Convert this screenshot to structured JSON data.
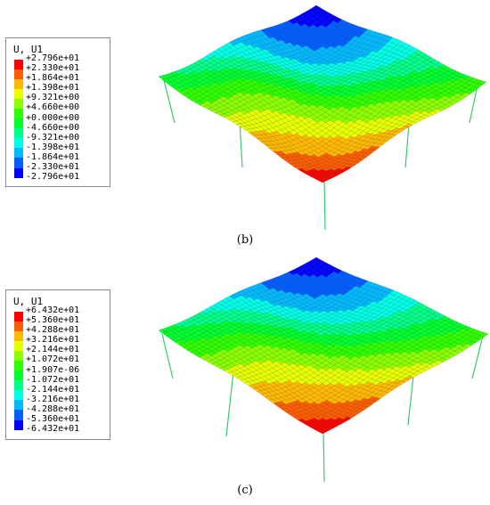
{
  "colors": {
    "contour_scale": [
      "#0000ff",
      "#005dff",
      "#00b9ff",
      "#00ffe8",
      "#00ff8b",
      "#00ff2e",
      "#2eff00",
      "#8bff00",
      "#e8ff00",
      "#ffb900",
      "#ff5d00",
      "#ff0000"
    ]
  },
  "panels": [
    {
      "label": "(b)",
      "legend": {
        "title": "U, U1",
        "values": [
          "+2.796e+01",
          "+2.330e+01",
          "+1.864e+01",
          "+1.398e+01",
          "+9.321e+00",
          "+4.660e+00",
          "+0.000e+00",
          "-4.660e+00",
          "-9.321e+00",
          "-1.398e+01",
          "-1.864e+01",
          "-2.330e+01",
          "-2.796e+01"
        ]
      }
    },
    {
      "label": "(c)",
      "legend": {
        "title": "U, U1",
        "values": [
          "+6.432e+01",
          "+5.360e+01",
          "+4.288e+01",
          "+3.216e+01",
          "+2.144e+01",
          "+1.072e+01",
          "+1.907e-06",
          "-1.072e+01",
          "-2.144e+01",
          "-3.216e+01",
          "-4.288e+01",
          "-5.360e+01",
          "-6.432e+01"
        ]
      }
    }
  ]
}
